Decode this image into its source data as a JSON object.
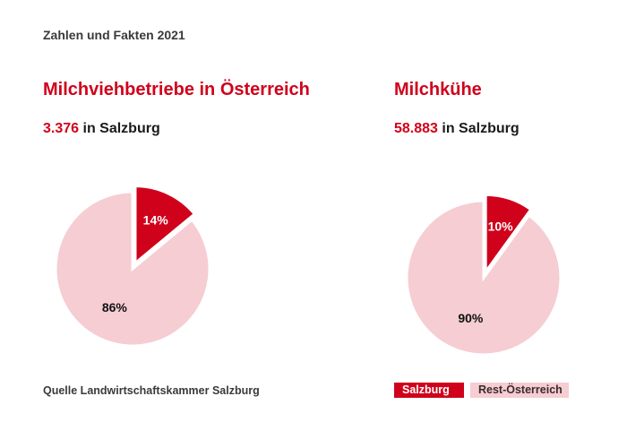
{
  "header": "Zahlen und Fakten 2021",
  "colors": {
    "salzburg": "#d0021b",
    "rest": "#f5cdd3"
  },
  "chart_data": [
    {
      "type": "pie",
      "title": "Milchviehbetriebe in Österreich",
      "subtitle_value": "3.376",
      "subtitle_text": " in Salzburg",
      "series": [
        {
          "name": "Salzburg",
          "value": 14,
          "label": "14%"
        },
        {
          "name": "Rest-Österreich",
          "value": 86,
          "label": "86%"
        }
      ]
    },
    {
      "type": "pie",
      "title": "Milchkühe",
      "subtitle_value": "58.883",
      "subtitle_text": " in Salzburg",
      "series": [
        {
          "name": "Salzburg",
          "value": 10,
          "label": "10%"
        },
        {
          "name": "Rest-Österreich",
          "value": 90,
          "label": "90%"
        }
      ]
    }
  ],
  "legend": {
    "salzburg": "Salzburg",
    "rest": "Rest-Österreich"
  },
  "source": "Quelle Landwirtschaftskammer Salzburg"
}
